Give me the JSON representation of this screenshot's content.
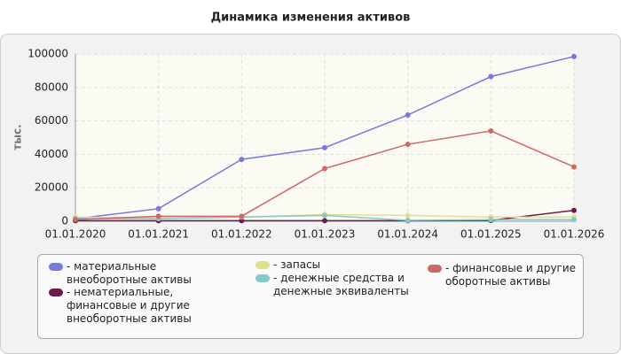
{
  "chart_data": {
    "type": "line",
    "title": "Динамика изменения активов",
    "y_label": "тыс.",
    "categories": [
      "01.01.2020",
      "01.01.2021",
      "01.01.2022",
      "01.01.2023",
      "01.01.2024",
      "01.01.2025",
      "01.01.2026"
    ],
    "ylim": [
      0,
      100000
    ],
    "yticks": [
      0,
      20000,
      40000,
      60000,
      80000,
      100000
    ],
    "grid": true,
    "series": [
      {
        "name": "- материальные внеоборотные активы",
        "color": "#7878e0",
        "values": [
          1500,
          7500,
          37000,
          44000,
          63500,
          86500,
          98500
        ]
      },
      {
        "name": "- нематериальные, финансовые и другие внеоборотные активы",
        "color": "#6b1a4e",
        "values": [
          300,
          300,
          300,
          300,
          300,
          500,
          6500
        ]
      },
      {
        "name": "- запасы",
        "color": "#e0e08c",
        "values": [
          2500,
          2000,
          2500,
          4000,
          3500,
          2500,
          2500
        ]
      },
      {
        "name": "- денежные средства и денежные эквиваленты",
        "color": "#88c8c8",
        "values": [
          1500,
          1500,
          2500,
          3500,
          500,
          1000,
          1000
        ]
      },
      {
        "name": "- финансовые и другие оборотные активы",
        "color": "#d06868",
        "values": [
          1000,
          3000,
          3000,
          31500,
          46000,
          54000,
          32500
        ]
      }
    ]
  }
}
